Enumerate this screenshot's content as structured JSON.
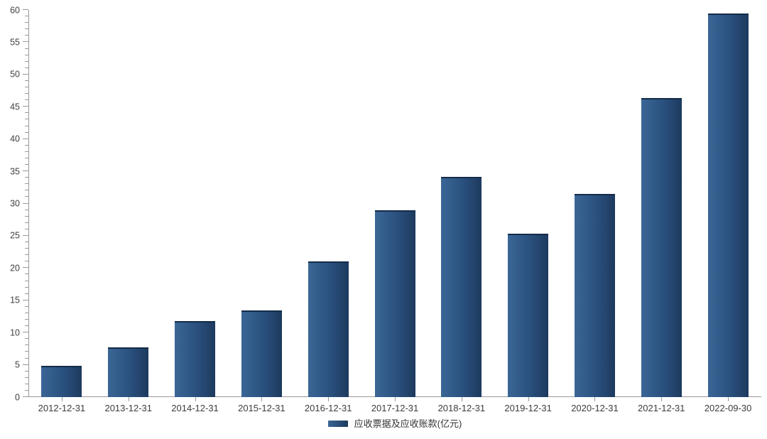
{
  "chart_data": {
    "type": "bar",
    "categories": [
      "2012-12-31",
      "2013-12-31",
      "2014-12-31",
      "2015-12-31",
      "2016-12-31",
      "2017-12-31",
      "2018-12-31",
      "2019-12-31",
      "2020-12-31",
      "2021-12-31",
      "2022-09-30"
    ],
    "series": [
      {
        "name": "应收票据及应收账款(亿元)",
        "values": [
          4.8,
          7.7,
          11.8,
          13.4,
          21.0,
          29.0,
          34.1,
          25.3,
          31.5,
          46.3,
          59.5
        ]
      }
    ],
    "title": "",
    "xlabel": "",
    "ylabel": "",
    "ylim": [
      0,
      60
    ],
    "y_tick_major": 5,
    "y_tick_minor": 1,
    "grid": false,
    "legend_position": "bottom",
    "colors": {
      "bar_gradient_left": "#3a6696",
      "bar_gradient_right": "#1d3a5e",
      "bar_top_edge": "#142c48",
      "axis": "#999999",
      "tick_label": "#404040",
      "x_label": "#3c3c3c"
    }
  }
}
